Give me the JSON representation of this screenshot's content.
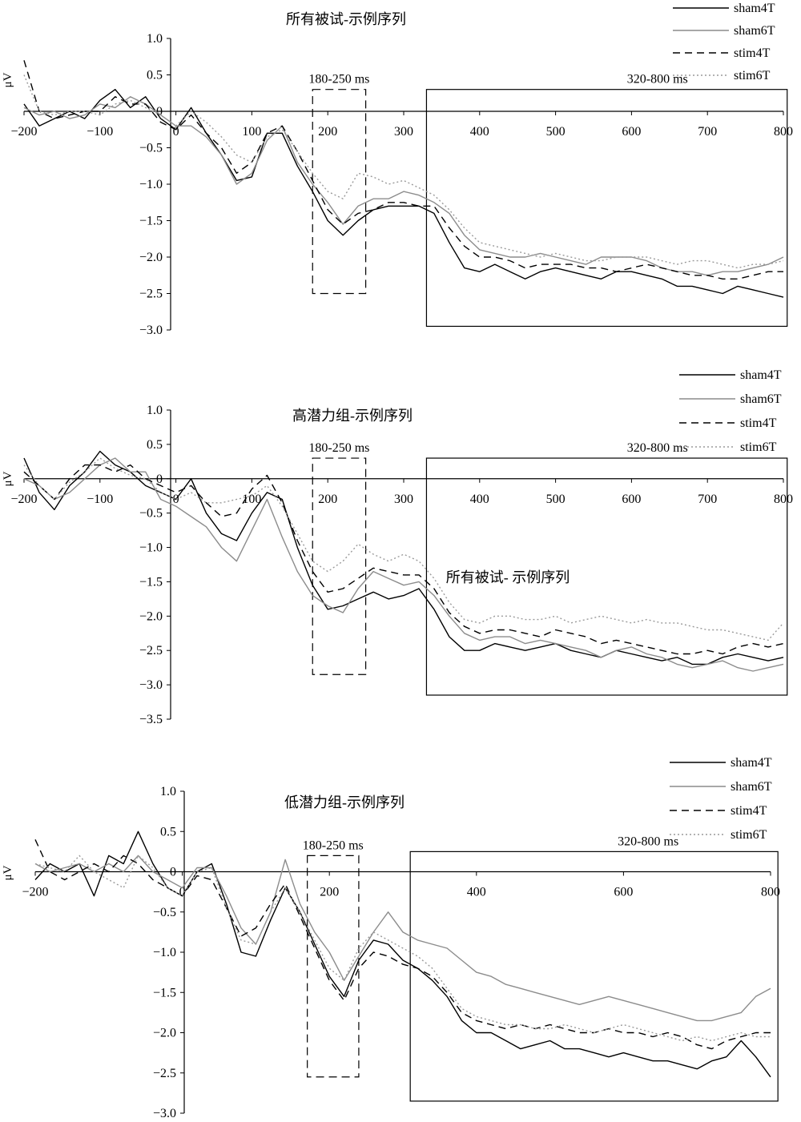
{
  "colors": {
    "sham4T": "#000000",
    "sham6T": "#8c8c8c",
    "stim4T": "#000000",
    "stim6T": "#9a9a9a"
  },
  "series_styles": {
    "sham4T": "solid",
    "sham6T": "solid",
    "stim4T": "dashed",
    "stim6T": "dotted"
  },
  "stray_text": "所有被试- 示例序列",
  "chart_data": [
    {
      "type": "line",
      "title": "所有被试-示例序列",
      "ylabel": "μV",
      "xlim": [
        -200,
        800
      ],
      "ylim": [
        -3.0,
        1.0
      ],
      "x_ticks": [
        "−200",
        "−100",
        "0",
        "100",
        "200",
        "300",
        "400",
        "500",
        "600",
        "700",
        "800"
      ],
      "x_tick_values": [
        -200,
        -100,
        0,
        100,
        200,
        300,
        400,
        500,
        600,
        700,
        800
      ],
      "y_ticks": [
        "1.0",
        "0.5",
        "0",
        "−0.5",
        "−1.0",
        "−1.5",
        "−2.0",
        "−2.5",
        "−3.0"
      ],
      "y_tick_values": [
        1.0,
        0.5,
        0,
        -0.5,
        -1.0,
        -1.5,
        -2.0,
        -2.5,
        -3.0
      ],
      "windows": [
        {
          "label": "180-250 ms",
          "x": [
            180,
            250
          ],
          "y": [
            -2.5,
            0.3
          ],
          "style": "dashed"
        },
        {
          "label": "320-800 ms",
          "x": [
            330,
            805
          ],
          "y": [
            -2.95,
            0.3
          ],
          "style": "solid"
        }
      ],
      "x": [
        -200,
        -180,
        -160,
        -140,
        -120,
        -100,
        -80,
        -60,
        -40,
        -20,
        0,
        20,
        40,
        60,
        80,
        100,
        120,
        140,
        160,
        180,
        200,
        220,
        240,
        260,
        280,
        300,
        320,
        340,
        360,
        380,
        400,
        420,
        440,
        460,
        480,
        500,
        520,
        540,
        560,
        580,
        600,
        620,
        640,
        660,
        680,
        700,
        720,
        740,
        760,
        780,
        800
      ],
      "series": [
        {
          "name": "sham4T",
          "values": [
            0.1,
            -0.2,
            -0.1,
            0.0,
            -0.1,
            0.15,
            0.3,
            0.05,
            0.2,
            -0.1,
            -0.25,
            0.05,
            -0.3,
            -0.6,
            -0.95,
            -0.9,
            -0.3,
            -0.3,
            -0.75,
            -1.1,
            -1.5,
            -1.7,
            -1.5,
            -1.35,
            -1.3,
            -1.3,
            -1.3,
            -1.4,
            -1.8,
            -2.15,
            -2.2,
            -2.1,
            -2.2,
            -2.3,
            -2.2,
            -2.15,
            -2.2,
            -2.25,
            -2.3,
            -2.2,
            -2.2,
            -2.25,
            -2.3,
            -2.4,
            -2.4,
            -2.45,
            -2.5,
            -2.4,
            -2.45,
            -2.5,
            -2.55
          ]
        },
        {
          "name": "sham6T",
          "values": [
            0.05,
            -0.05,
            0.0,
            -0.1,
            -0.05,
            0.1,
            0.05,
            0.2,
            0.1,
            -0.05,
            -0.2,
            -0.2,
            -0.35,
            -0.6,
            -1.0,
            -0.85,
            -0.4,
            -0.2,
            -0.7,
            -1.0,
            -1.25,
            -1.55,
            -1.3,
            -1.2,
            -1.2,
            -1.1,
            -1.15,
            -1.25,
            -1.4,
            -1.7,
            -1.9,
            -1.95,
            -2.0,
            -2.0,
            -1.95,
            -2.0,
            -2.05,
            -2.1,
            -2.0,
            -2.0,
            -2.0,
            -2.05,
            -2.15,
            -2.2,
            -2.2,
            -2.25,
            -2.2,
            -2.2,
            -2.15,
            -2.1,
            -2.0
          ]
        },
        {
          "name": "stim4T",
          "values": [
            0.7,
            0.0,
            -0.1,
            -0.05,
            0.0,
            0.0,
            0.2,
            0.1,
            0.1,
            -0.15,
            -0.25,
            -0.05,
            -0.3,
            -0.5,
            -0.85,
            -0.7,
            -0.3,
            -0.2,
            -0.55,
            -0.95,
            -1.35,
            -1.55,
            -1.4,
            -1.35,
            -1.25,
            -1.25,
            -1.3,
            -1.3,
            -1.6,
            -1.85,
            -2.0,
            -2.0,
            -2.05,
            -2.15,
            -2.1,
            -2.1,
            -2.1,
            -2.15,
            -2.15,
            -2.2,
            -2.15,
            -2.1,
            -2.15,
            -2.2,
            -2.25,
            -2.25,
            -2.3,
            -2.3,
            -2.25,
            -2.2,
            -2.2
          ]
        },
        {
          "name": "stim6T",
          "values": [
            0.5,
            0.0,
            -0.05,
            0.0,
            0.0,
            -0.05,
            0.1,
            0.15,
            0.05,
            -0.05,
            -0.2,
            0.0,
            -0.15,
            -0.35,
            -0.6,
            -0.7,
            -0.35,
            -0.25,
            -0.55,
            -0.85,
            -1.1,
            -1.2,
            -0.85,
            -0.9,
            -1.0,
            -0.95,
            -1.05,
            -1.15,
            -1.35,
            -1.6,
            -1.8,
            -1.85,
            -1.9,
            -1.95,
            -2.0,
            -1.95,
            -2.0,
            -2.05,
            -2.05,
            -2.0,
            -2.0,
            -2.0,
            -2.05,
            -2.1,
            -2.05,
            -2.05,
            -2.1,
            -2.15,
            -2.1,
            -2.1,
            -2.05
          ]
        }
      ]
    },
    {
      "type": "line",
      "title": "高潜力组-示例序列",
      "ylabel": "μV",
      "xlim": [
        -200,
        800
      ],
      "ylim": [
        -3.5,
        1.0
      ],
      "x_ticks": [
        "−200",
        "−100",
        "0",
        "100",
        "200",
        "300",
        "400",
        "500",
        "600",
        "700",
        "800"
      ],
      "x_tick_values": [
        -200,
        -100,
        0,
        100,
        200,
        300,
        400,
        500,
        600,
        700,
        800
      ],
      "y_ticks": [
        "1.0",
        "0.5",
        "0",
        "−0.5",
        "−1.0",
        "−1.5",
        "−2.0",
        "−2.5",
        "−3.0",
        "−3.5"
      ],
      "y_tick_values": [
        1.0,
        0.5,
        0,
        -0.5,
        -1.0,
        -1.5,
        -2.0,
        -2.5,
        -3.0,
        -3.5
      ],
      "windows": [
        {
          "label": "180-250 ms",
          "x": [
            180,
            250
          ],
          "y": [
            -2.85,
            0.3
          ],
          "style": "dashed"
        },
        {
          "label": "320-800 ms",
          "x": [
            330,
            805
          ],
          "y": [
            -3.15,
            0.3
          ],
          "style": "solid"
        }
      ],
      "x": [
        -200,
        -180,
        -160,
        -140,
        -120,
        -100,
        -80,
        -60,
        -40,
        -20,
        0,
        20,
        40,
        60,
        80,
        100,
        120,
        140,
        160,
        180,
        200,
        220,
        240,
        260,
        280,
        300,
        320,
        340,
        360,
        380,
        400,
        420,
        440,
        460,
        480,
        500,
        520,
        540,
        560,
        580,
        600,
        620,
        640,
        660,
        680,
        700,
        720,
        740,
        760,
        780,
        800
      ],
      "series": [
        {
          "name": "sham4T",
          "values": [
            0.3,
            -0.2,
            -0.45,
            -0.1,
            0.1,
            0.4,
            0.2,
            0.1,
            -0.1,
            -0.2,
            -0.3,
            0.0,
            -0.5,
            -0.8,
            -0.9,
            -0.5,
            -0.2,
            -0.3,
            -1.0,
            -1.55,
            -1.9,
            -1.85,
            -1.75,
            -1.65,
            -1.75,
            -1.7,
            -1.6,
            -1.9,
            -2.3,
            -2.5,
            -2.5,
            -2.4,
            -2.45,
            -2.5,
            -2.45,
            -2.4,
            -2.5,
            -2.55,
            -2.6,
            -2.5,
            -2.55,
            -2.6,
            -2.65,
            -2.6,
            -2.7,
            -2.7,
            -2.6,
            -2.55,
            -2.6,
            -2.65,
            -2.6
          ]
        },
        {
          "name": "sham6T",
          "values": [
            0.0,
            -0.1,
            -0.3,
            -0.2,
            0.0,
            0.2,
            0.3,
            0.1,
            0.1,
            -0.3,
            -0.4,
            -0.55,
            -0.7,
            -1.0,
            -1.2,
            -0.75,
            -0.3,
            -0.85,
            -1.35,
            -1.7,
            -1.85,
            -1.95,
            -1.6,
            -1.35,
            -1.45,
            -1.55,
            -1.5,
            -1.7,
            -2.0,
            -2.25,
            -2.35,
            -2.3,
            -2.3,
            -2.4,
            -2.35,
            -2.4,
            -2.45,
            -2.5,
            -2.6,
            -2.5,
            -2.45,
            -2.55,
            -2.6,
            -2.7,
            -2.75,
            -2.7,
            -2.65,
            -2.75,
            -2.8,
            -2.75,
            -2.7
          ]
        },
        {
          "name": "stim4T",
          "values": [
            0.1,
            -0.1,
            -0.3,
            0.0,
            0.2,
            0.2,
            0.1,
            0.2,
            0.0,
            -0.1,
            -0.2,
            -0.1,
            -0.35,
            -0.55,
            -0.5,
            -0.15,
            0.05,
            -0.35,
            -0.9,
            -1.35,
            -1.65,
            -1.6,
            -1.45,
            -1.3,
            -1.35,
            -1.4,
            -1.4,
            -1.6,
            -1.95,
            -2.15,
            -2.25,
            -2.2,
            -2.2,
            -2.25,
            -2.3,
            -2.2,
            -2.25,
            -2.3,
            -2.4,
            -2.35,
            -2.4,
            -2.45,
            -2.5,
            -2.55,
            -2.55,
            -2.5,
            -2.55,
            -2.45,
            -2.4,
            -2.45,
            -2.4
          ]
        },
        {
          "name": "stim6T",
          "values": [
            0.2,
            -0.1,
            -0.3,
            -0.05,
            0.1,
            0.3,
            0.15,
            0.05,
            0.0,
            -0.2,
            -0.3,
            -0.2,
            -0.35,
            -0.35,
            -0.3,
            -0.25,
            -0.1,
            -0.4,
            -0.8,
            -1.2,
            -1.35,
            -1.2,
            -0.95,
            -1.1,
            -1.2,
            -1.1,
            -1.2,
            -1.45,
            -1.8,
            -2.05,
            -2.1,
            -2.0,
            -2.0,
            -2.05,
            -2.05,
            -2.0,
            -2.1,
            -2.05,
            -2.0,
            -2.05,
            -2.1,
            -2.05,
            -2.1,
            -2.1,
            -2.15,
            -2.2,
            -2.2,
            -2.25,
            -2.3,
            -2.35,
            -2.1
          ]
        }
      ]
    },
    {
      "type": "line",
      "title": "低潜力组-示例序列",
      "ylabel": "μV",
      "xlim": [
        -200,
        800
      ],
      "ylim": [
        -3.0,
        1.0
      ],
      "x_ticks": [
        "−200",
        "0",
        "200",
        "400",
        "600",
        "800"
      ],
      "x_tick_values": [
        -200,
        0,
        200,
        400,
        600,
        800
      ],
      "y_ticks": [
        "1.0",
        "0.5",
        "0",
        "−0.5",
        "−1.0",
        "−1.5",
        "−2.0",
        "−2.5",
        "−3.0"
      ],
      "y_tick_values": [
        1.0,
        0.5,
        0,
        -0.5,
        -1.0,
        -1.5,
        -2.0,
        -2.5,
        -3.0
      ],
      "windows": [
        {
          "label": "180-250 ms",
          "x": [
            170,
            240
          ],
          "y": [
            -2.55,
            0.2
          ],
          "style": "dashed"
        },
        {
          "label": "320-800 ms",
          "x": [
            310,
            810
          ],
          "y": [
            -2.85,
            0.25
          ],
          "style": "solid"
        }
      ],
      "x": [
        -200,
        -180,
        -160,
        -140,
        -120,
        -100,
        -80,
        -60,
        -40,
        -20,
        0,
        20,
        40,
        60,
        80,
        100,
        120,
        140,
        160,
        180,
        200,
        220,
        240,
        260,
        280,
        300,
        320,
        340,
        360,
        380,
        400,
        420,
        440,
        460,
        480,
        500,
        520,
        540,
        560,
        580,
        600,
        620,
        640,
        660,
        680,
        700,
        720,
        740,
        760,
        780,
        800
      ],
      "series": [
        {
          "name": "sham4T",
          "values": [
            -0.1,
            0.1,
            0.0,
            0.1,
            -0.3,
            0.2,
            0.1,
            0.5,
            0.1,
            -0.2,
            -0.3,
            0.0,
            0.1,
            -0.4,
            -1.0,
            -1.05,
            -0.6,
            -0.2,
            -0.5,
            -0.9,
            -1.3,
            -1.55,
            -1.1,
            -0.85,
            -0.9,
            -1.1,
            -1.2,
            -1.35,
            -1.55,
            -1.85,
            -2.0,
            -2.0,
            -2.1,
            -2.2,
            -2.15,
            -2.1,
            -2.2,
            -2.2,
            -2.25,
            -2.3,
            -2.25,
            -2.3,
            -2.35,
            -2.35,
            -2.4,
            -2.45,
            -2.35,
            -2.3,
            -2.1,
            -2.3,
            -2.55
          ]
        },
        {
          "name": "sham6T",
          "values": [
            0.1,
            0.0,
            0.05,
            0.1,
            0.0,
            0.1,
            0.0,
            0.2,
            0.0,
            -0.1,
            -0.2,
            0.05,
            0.05,
            -0.3,
            -0.7,
            -0.9,
            -0.5,
            0.15,
            -0.4,
            -0.75,
            -1.0,
            -1.35,
            -1.05,
            -0.75,
            -0.5,
            -0.75,
            -0.85,
            -0.9,
            -0.95,
            -1.1,
            -1.25,
            -1.3,
            -1.4,
            -1.45,
            -1.5,
            -1.55,
            -1.6,
            -1.65,
            -1.6,
            -1.55,
            -1.6,
            -1.65,
            -1.7,
            -1.75,
            -1.8,
            -1.85,
            -1.85,
            -1.8,
            -1.75,
            -1.55,
            -1.45
          ]
        },
        {
          "name": "stim4T",
          "values": [
            0.4,
            0.0,
            -0.1,
            0.0,
            0.1,
            0.0,
            0.2,
            0.1,
            -0.1,
            -0.2,
            -0.3,
            -0.05,
            -0.1,
            -0.45,
            -0.8,
            -0.7,
            -0.4,
            -0.15,
            -0.55,
            -0.95,
            -1.35,
            -1.6,
            -1.2,
            -1.0,
            -1.05,
            -1.15,
            -1.2,
            -1.3,
            -1.5,
            -1.75,
            -1.85,
            -1.9,
            -1.95,
            -1.9,
            -1.95,
            -1.9,
            -1.95,
            -2.0,
            -2.0,
            -1.95,
            -2.0,
            -2.0,
            -2.05,
            -2.0,
            -2.05,
            -2.15,
            -2.2,
            -2.1,
            -2.05,
            -2.0,
            -2.0
          ]
        },
        {
          "name": "stim6T",
          "values": [
            0.1,
            0.05,
            0.0,
            0.2,
            0.0,
            -0.1,
            -0.2,
            0.2,
            0.05,
            -0.2,
            -0.3,
            0.0,
            0.05,
            -0.45,
            -0.85,
            -0.9,
            -0.5,
            -0.2,
            -0.5,
            -0.85,
            -1.2,
            -1.35,
            -0.95,
            -0.75,
            -0.85,
            -0.95,
            -1.05,
            -1.2,
            -1.45,
            -1.7,
            -1.8,
            -1.85,
            -1.9,
            -1.9,
            -1.95,
            -1.95,
            -1.9,
            -1.95,
            -2.0,
            -1.95,
            -1.9,
            -1.95,
            -2.0,
            -2.05,
            -2.1,
            -2.05,
            -2.1,
            -2.05,
            -2.0,
            -2.05,
            -2.05
          ]
        }
      ]
    }
  ]
}
